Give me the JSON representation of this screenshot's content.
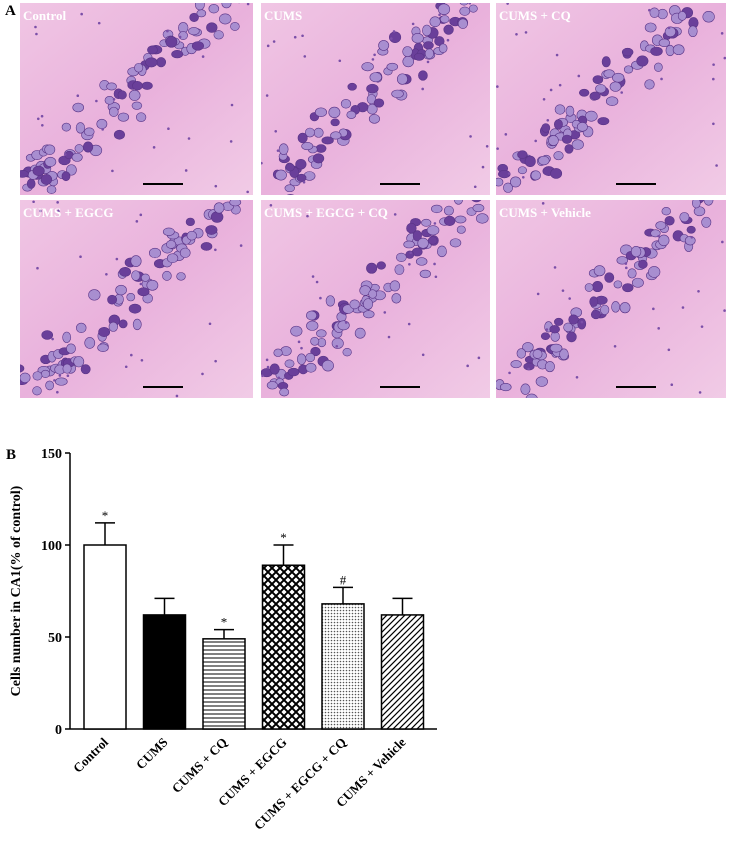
{
  "panel_a": {
    "label": "A",
    "images": [
      {
        "label": "Control"
      },
      {
        "label": "CUMS"
      },
      {
        "label": "CUMS + CQ"
      },
      {
        "label": "CUMS + EGCG"
      },
      {
        "label": "CUMS + EGCG + CQ"
      },
      {
        "label": "CUMS + Vehicle"
      }
    ]
  },
  "chart_data": {
    "type": "bar",
    "panel_label": "B",
    "y_label": "Cells number in CA1(% of control)",
    "categories": [
      "Control",
      "CUMS",
      "CUMS + CQ",
      "CUMS + EGCG",
      "CUMS + EGCG + CQ",
      "CUMS + Vehicle"
    ],
    "values": [
      100,
      62,
      49,
      89,
      68,
      62
    ],
    "errors": [
      12,
      9,
      5,
      11,
      9,
      9
    ],
    "annotations": [
      "*",
      null,
      "*",
      "*",
      "#",
      null
    ],
    "patterns": [
      "none",
      "solid",
      "horizontal",
      "crosshatch",
      "dots",
      "diagonal"
    ],
    "color": "#000000",
    "ylim": [
      0,
      150
    ],
    "yticks": [
      0,
      50,
      100,
      150
    ]
  }
}
